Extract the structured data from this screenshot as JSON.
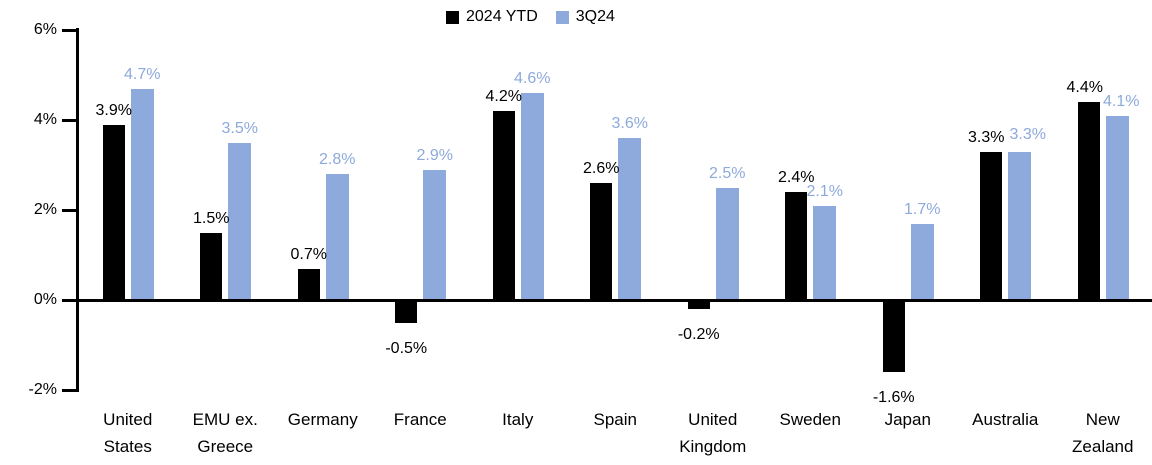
{
  "chart_data": {
    "type": "bar",
    "title": "",
    "categories": [
      "United States",
      "EMU ex. Greece",
      "Germany",
      "France",
      "Italy",
      "Spain",
      "United Kingdom",
      "Sweden",
      "Japan",
      "Australia",
      "New Zealand"
    ],
    "categories_display": [
      [
        "United",
        "States"
      ],
      [
        "EMU ex.",
        "Greece"
      ],
      [
        "Germany"
      ],
      [
        "France"
      ],
      [
        "Italy"
      ],
      [
        "Spain"
      ],
      [
        "United",
        "Kingdom"
      ],
      [
        "Sweden"
      ],
      [
        "Japan"
      ],
      [
        "Australia"
      ],
      [
        "New",
        "Zealand"
      ]
    ],
    "series": [
      {
        "name": "2024 YTD",
        "color": "#000000",
        "values": [
          3.9,
          1.5,
          0.7,
          -0.5,
          4.2,
          2.6,
          -0.2,
          2.4,
          -1.6,
          3.3,
          4.4
        ],
        "labels": [
          "3.9%",
          "1.5%",
          "0.7%",
          "-0.5%",
          "4.2%",
          "2.6%",
          "-0.2%",
          "2.4%",
          "-1.6%",
          "3.3%",
          "4.4%"
        ]
      },
      {
        "name": "3Q24",
        "color": "#8EA9DB",
        "values": [
          4.7,
          3.5,
          2.8,
          2.9,
          4.6,
          3.6,
          2.5,
          2.1,
          1.7,
          3.3,
          4.1
        ],
        "labels": [
          "4.7%",
          "3.5%",
          "2.8%",
          "2.9%",
          "4.6%",
          "3.6%",
          "2.5%",
          "2.1%",
          "1.7%",
          "3.3%",
          "4.1%"
        ]
      }
    ],
    "y_axis": {
      "tick_labels": [
        "6%",
        "4%",
        "2%",
        "0%",
        "-2%"
      ],
      "tick_values": [
        6,
        4,
        2,
        0,
        -2
      ],
      "ylim": [
        -2,
        6
      ],
      "unit": "%"
    },
    "legend": {
      "position": "top",
      "entries": [
        "2024 YTD",
        "3Q24"
      ]
    },
    "grid": false,
    "colors": {
      "series_2024_ytd": "#000000",
      "series_3q24": "#8EA9DB",
      "axis": "#000000",
      "background": "#FFFFFF"
    }
  }
}
